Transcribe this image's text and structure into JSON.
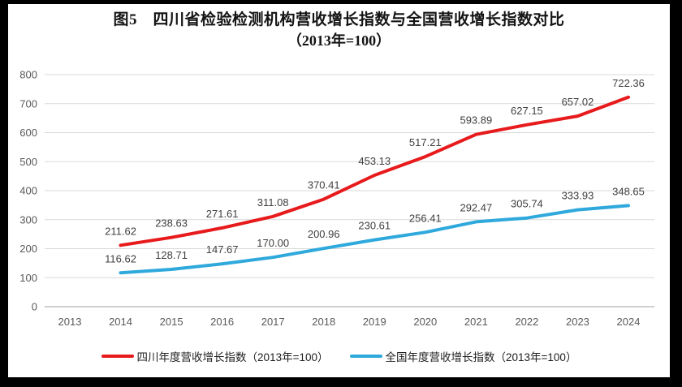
{
  "title": {
    "line1": "图5　四川省检验检测机构营收增长指数与全国营收增长指数对比",
    "line2": "（2013年=100）"
  },
  "colors": {
    "sichuan_line": "#e71a1c",
    "national_line": "#2fa9dc",
    "gridline": "#d9d9d9",
    "axis_line": "#bfbfbf",
    "tick_label": "#595959",
    "data_label": "#3f3f3f"
  },
  "chart_data": {
    "type": "line",
    "title": "图5　四川省检验检测机构营收增长指数与全国营收增长指数对比（2013年=100）",
    "categories": [
      "2013",
      "2014",
      "2015",
      "2016",
      "2017",
      "2018",
      "2019",
      "2020",
      "2021",
      "2022",
      "2023",
      "2024"
    ],
    "series": [
      {
        "name": "四川年度营收增长指数（2013年=100）",
        "color": "#e71a1c",
        "values": [
          null,
          211.62,
          238.63,
          271.61,
          311.08,
          370.41,
          453.13,
          517.21,
          593.89,
          627.15,
          657.02,
          722.36
        ],
        "labels": [
          "",
          "211.62",
          "238.63",
          "271.61",
          "311.08",
          "370.41",
          "453.13",
          "517.21",
          "593.89",
          "627.15",
          "657.02",
          "722.36"
        ]
      },
      {
        "name": "全国年度营收增长指数（2013年=100）",
        "color": "#2fa9dc",
        "values": [
          null,
          116.62,
          128.71,
          147.67,
          170.0,
          200.96,
          230.61,
          256.41,
          292.47,
          305.74,
          333.93,
          348.65
        ],
        "labels": [
          "",
          "116.62",
          "128.71",
          "147.67",
          "170.00",
          "200.96",
          "230.61",
          "256.41",
          "292.47",
          "305.74",
          "333.93",
          "348.65"
        ]
      }
    ],
    "xlabel": "",
    "ylabel": "",
    "ylim": [
      0,
      800
    ],
    "yticks": [
      0,
      100,
      200,
      300,
      400,
      500,
      600,
      700,
      800
    ],
    "grid": true,
    "legend_position": "bottom"
  }
}
